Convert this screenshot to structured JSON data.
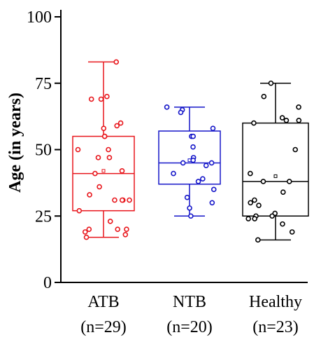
{
  "chart_data": {
    "type": "box",
    "title": "",
    "ylabel": "Age (in years)",
    "xlabel": "",
    "ylim": [
      0,
      100
    ],
    "yticks": [
      0,
      25,
      50,
      75,
      100
    ],
    "grid": false,
    "series": [
      {
        "name": "ATB",
        "label_line1": "ATB",
        "label_line2": "(n=29)",
        "color": "#e8161c",
        "whisker_low": 17,
        "q1": 27,
        "median": 41,
        "q3": 55,
        "whisker_high": 83,
        "mean": 42,
        "points": [
          83,
          70,
          69,
          69,
          60,
          59,
          58,
          55,
          55,
          50,
          50,
          47,
          47,
          42,
          41,
          36,
          33,
          31,
          31,
          31,
          31,
          27,
          23,
          20,
          20,
          20,
          19,
          18,
          17
        ]
      },
      {
        "name": "NTB",
        "label_line1": "NTB",
        "label_line2": "(n=20)",
        "color": "#1516c9",
        "whisker_low": 25,
        "q1": 37,
        "median": 45,
        "q3": 57,
        "whisker_high": 66,
        "mean": 46,
        "points": [
          66,
          65,
          64,
          58,
          55,
          55,
          51,
          47,
          46,
          45,
          45,
          44,
          41,
          39,
          38,
          35,
          32,
          30,
          28,
          25
        ]
      },
      {
        "name": "Healthy",
        "label_line1": "Healthy",
        "label_line2": "(n=23)",
        "color": "#000000",
        "whisker_low": 16,
        "q1": 25,
        "median": 38,
        "q3": 60,
        "whisker_high": 75,
        "mean": 40,
        "points": [
          75,
          70,
          66,
          62,
          61,
          61,
          60,
          50,
          41,
          38,
          38,
          34,
          31,
          30,
          29,
          26,
          25,
          25,
          24,
          24,
          22,
          19,
          16
        ]
      }
    ]
  }
}
